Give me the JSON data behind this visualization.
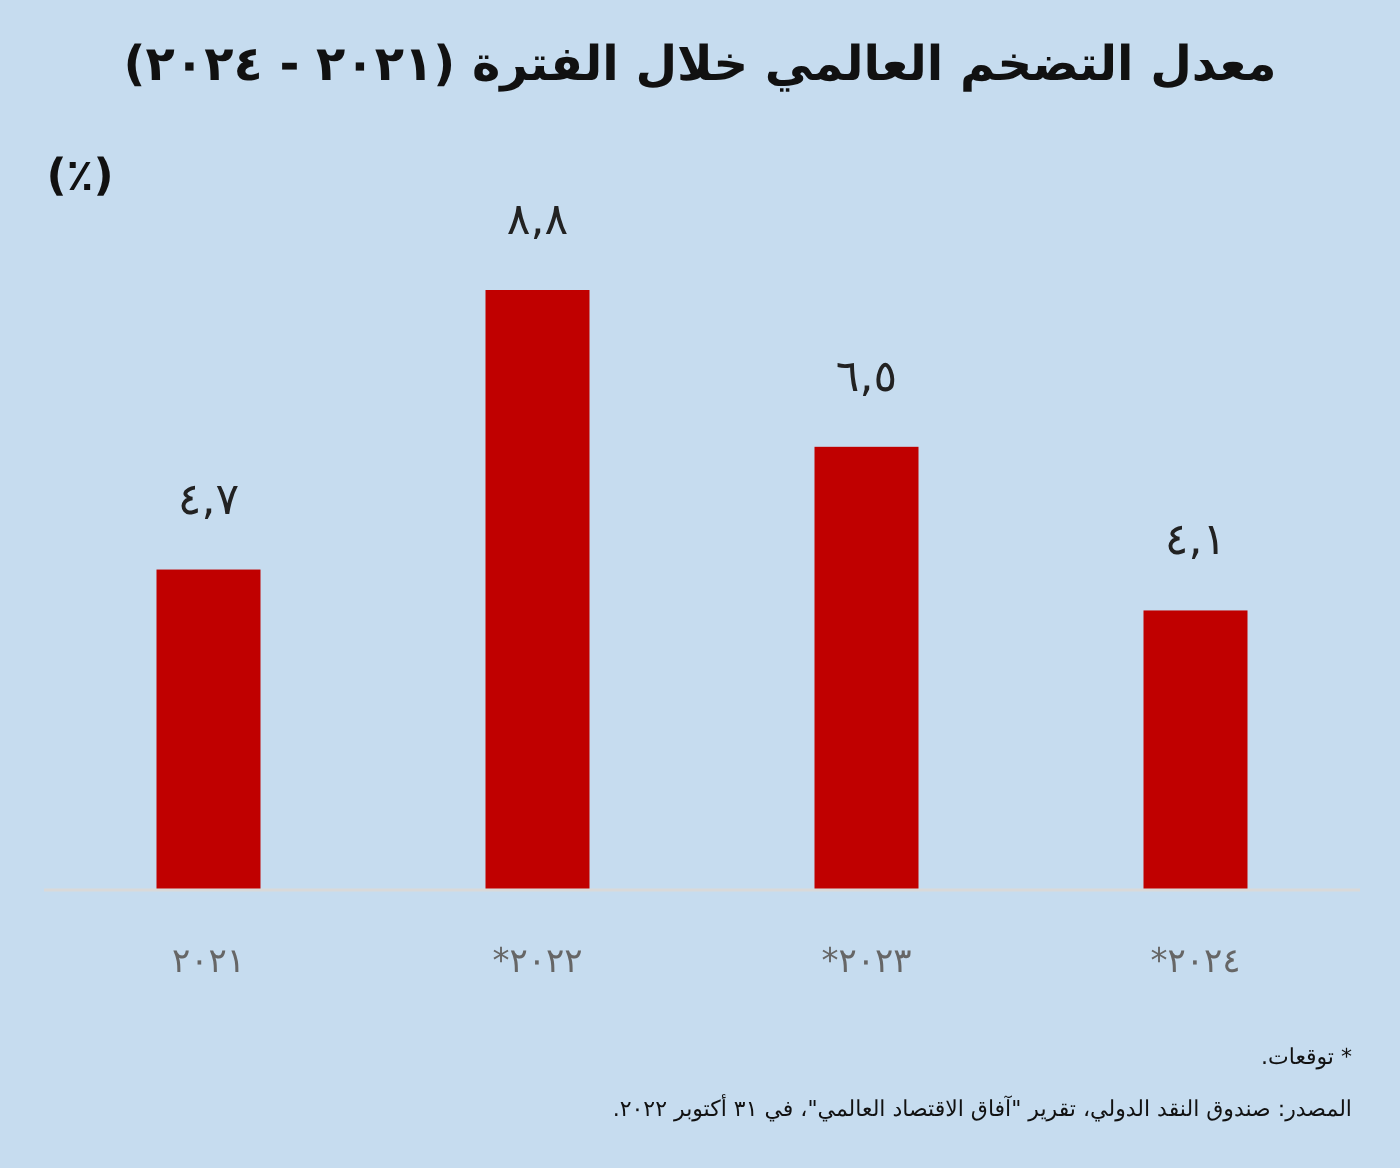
{
  "chart_data": {
    "type": "bar",
    "title": "معدل التضخم العالمي خلال الفترة (٢٠٢١ - ٢٠٢٤)",
    "ylabel": "(٪)",
    "categories": [
      "٢٠٢١",
      "٢٠٢٢*",
      "٢٠٢٣*",
      "٢٠٢٤*"
    ],
    "values": [
      4.7,
      8.8,
      6.5,
      4.1
    ],
    "value_labels": [
      "٤,٧",
      "٨,٨",
      "٦,٥",
      "٤,١"
    ],
    "color": "#c00000",
    "tick_labels": "x",
    "annotations": [
      "* توقعات.",
      "المصدر: صندوق النقد الدولي، تقرير \"آفاق الاقتصاد العالمي\"، في ٣١ أكتوبر ٢٠٢٢."
    ]
  }
}
